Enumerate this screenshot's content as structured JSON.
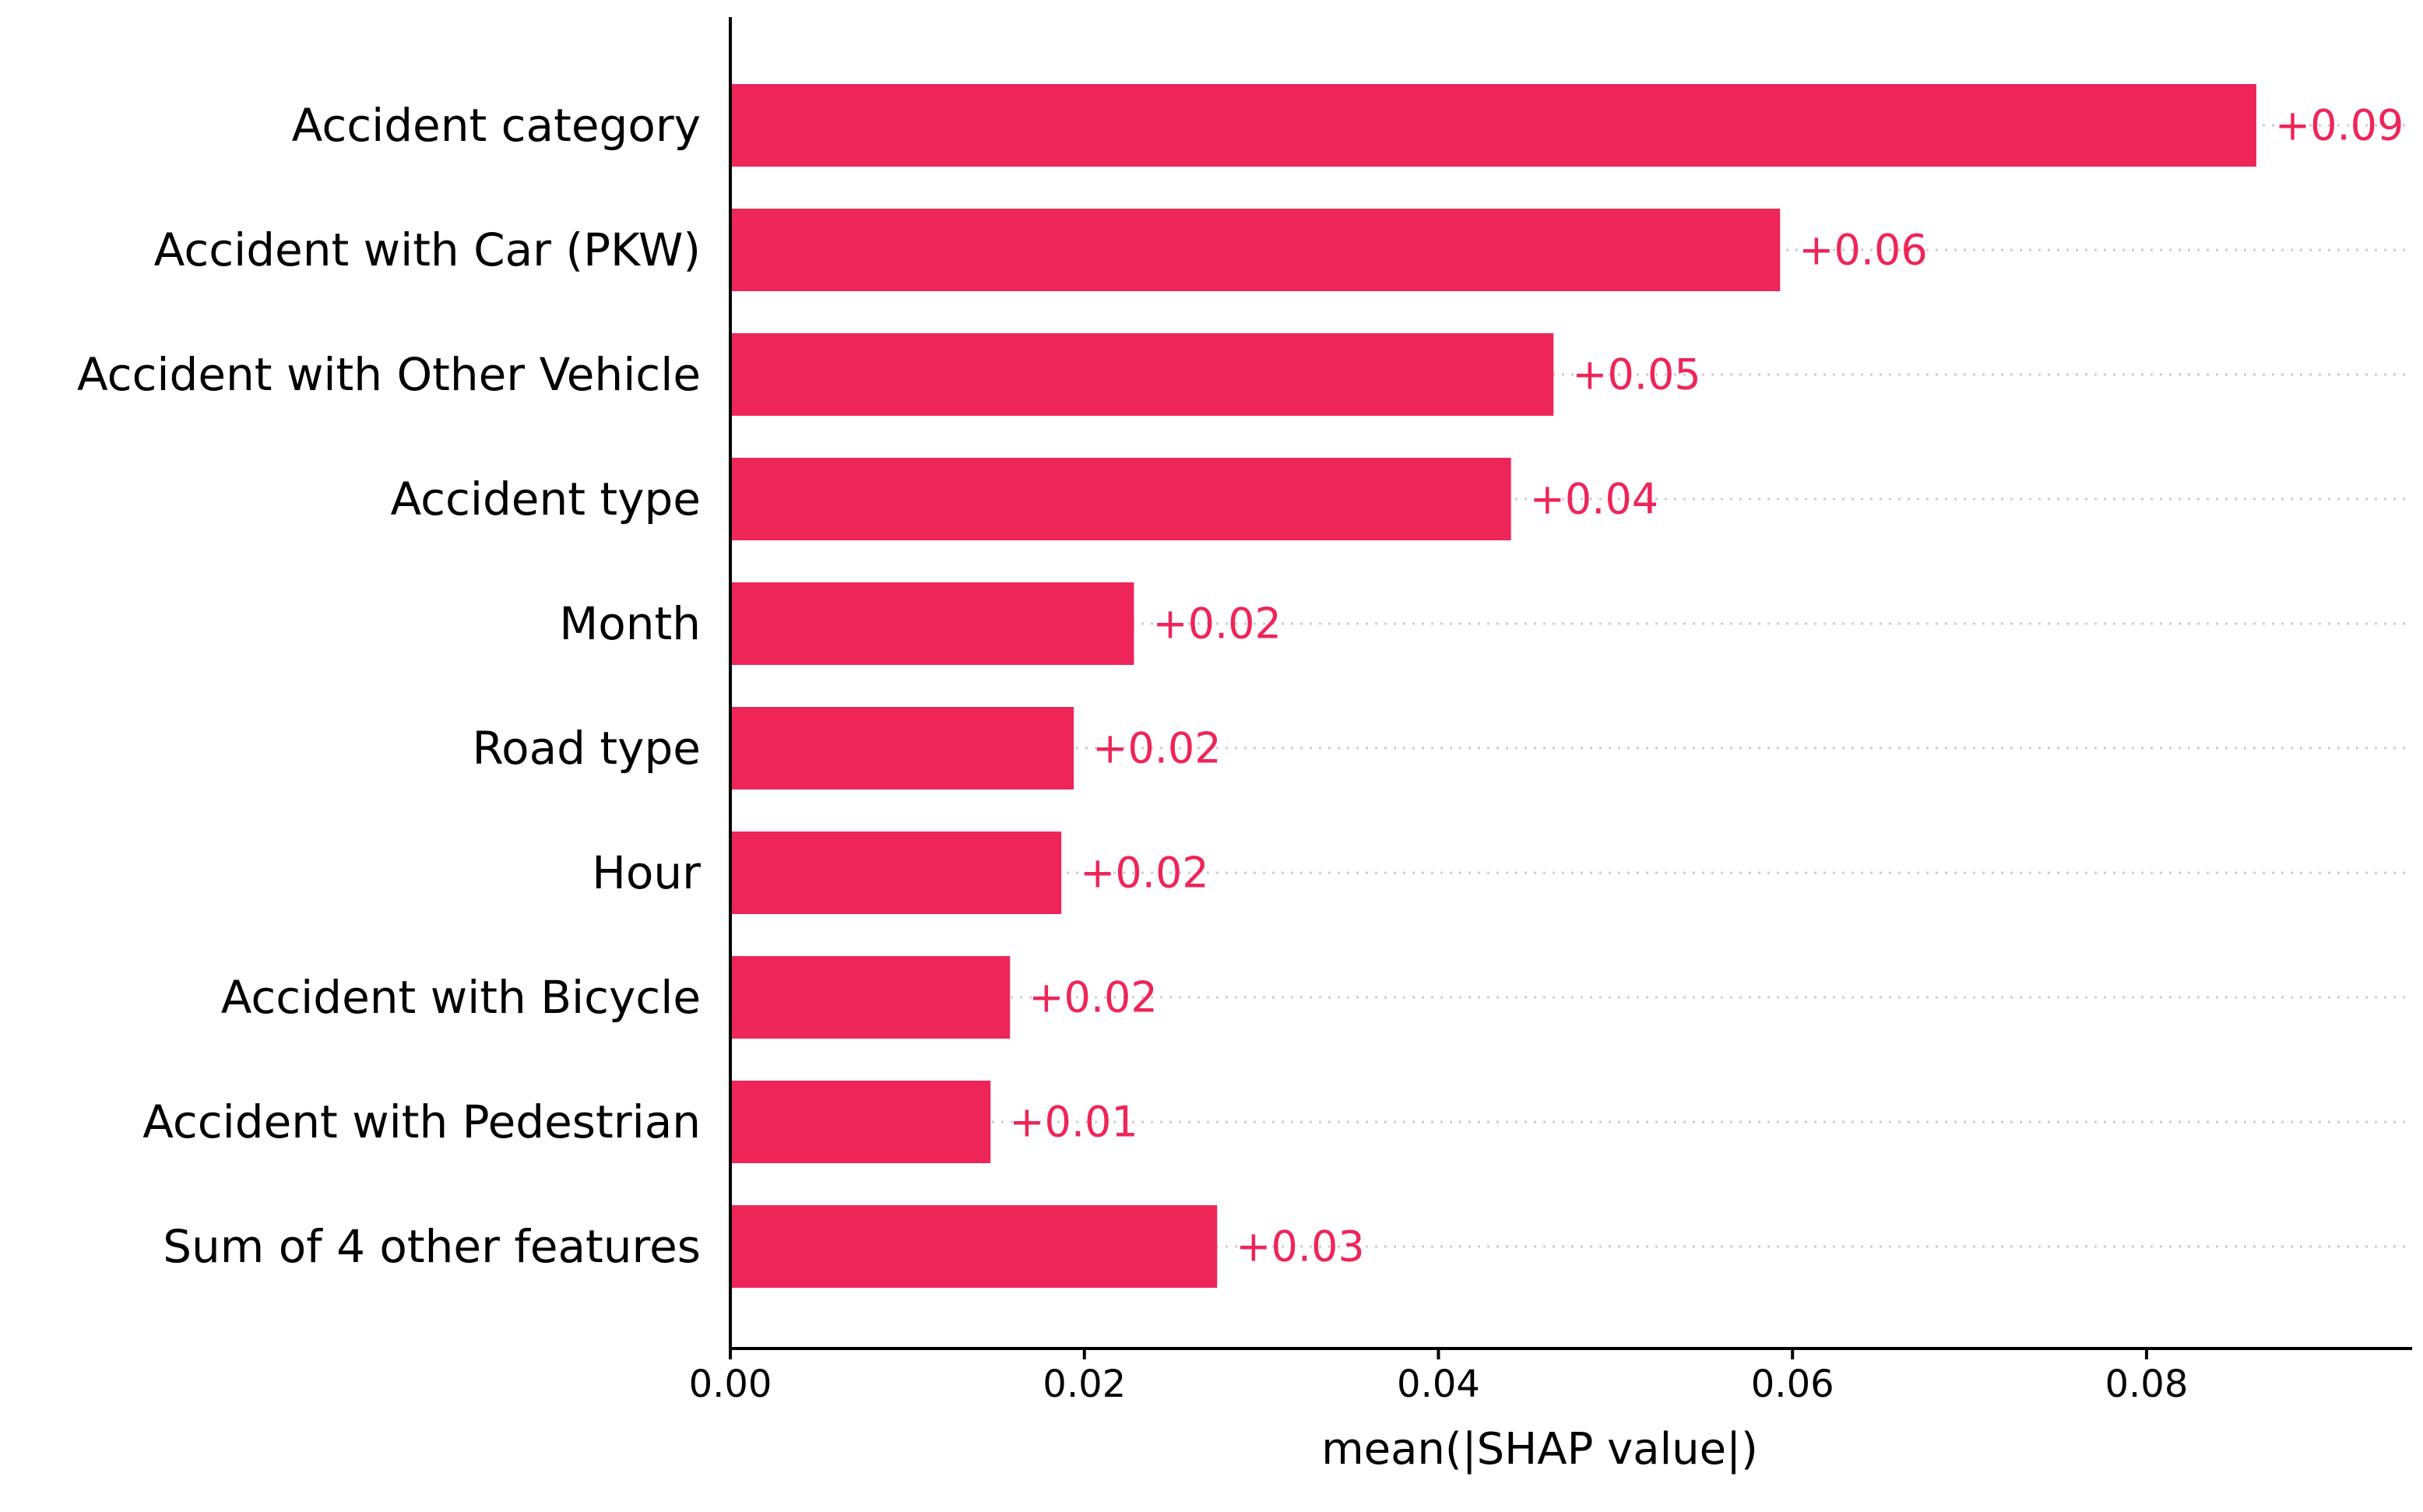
{
  "chart_data": {
    "type": "bar",
    "orientation": "horizontal",
    "categories": [
      "Accident category",
      "Accident with Car (PKW)",
      "Accident with Other Vehicle",
      "Accident type",
      "Month",
      "Road type",
      "Hour",
      "Accident with Bicycle",
      "Accident with Pedestrian",
      "Sum of 4 other features"
    ],
    "values": [
      0.0862,
      0.0593,
      0.0465,
      0.0441,
      0.0228,
      0.0194,
      0.0187,
      0.0158,
      0.0147,
      0.0275
    ],
    "value_labels": [
      "+0.09",
      "+0.06",
      "+0.05",
      "+0.04",
      "+0.02",
      "+0.02",
      "+0.02",
      "+0.02",
      "+0.01",
      "+0.03"
    ],
    "xlabel": "mean(|SHAP value|)",
    "ylabel": "",
    "title": "",
    "xlim": [
      0,
      0.095
    ],
    "xticks": [
      0.0,
      0.02,
      0.04,
      0.06,
      0.08
    ],
    "xtick_labels": [
      "0.00",
      "0.02",
      "0.04",
      "0.06",
      "0.08"
    ],
    "grid": "horizontal dotted per row",
    "legend": "none",
    "colors": {
      "bar": "#ee2559",
      "value_label": "#ee2559",
      "text": "#000000",
      "grid": "#cccccc"
    }
  }
}
